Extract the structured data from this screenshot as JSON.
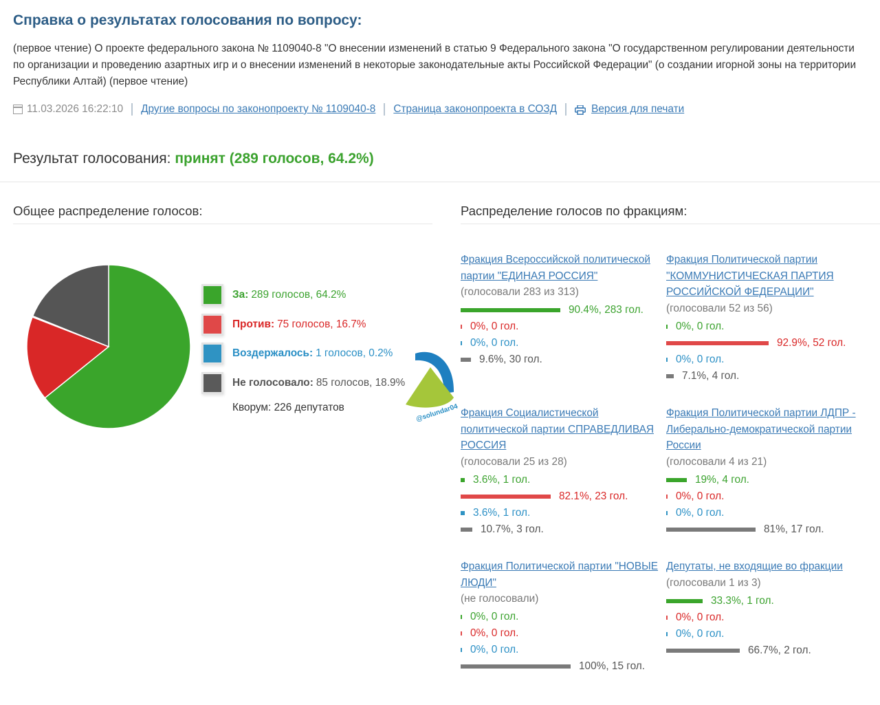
{
  "header": {
    "title": "Справка о результатах голосования по вопросу:",
    "description": "(первое чтение) О проекте федерального закона № 1109040-8 \"О внесении изменений в статью 9 Федерального закона \"О государственном регулировании деятельности по организации и проведению азартных игр и о внесении изменений в некоторые законодательные акты Российской Федерации\" (о создании игорной зоны на территории Республики Алтай) (первое чтение)"
  },
  "meta": {
    "datetime": "11.03.2026 16:22:10",
    "links": {
      "other_questions": "Другие вопросы по законопроекту № 1109040-8",
      "sozd_page": "Страница законопроекта в СОЗД",
      "print_version": "Версия для печати"
    }
  },
  "result": {
    "label": "Результат голосования:",
    "value": "принят (289 голосов, 64.2%)"
  },
  "sections": {
    "overall_title": "Общее распределение голосов:",
    "factions_title": "Распределение голосов по фракциям:"
  },
  "colors": {
    "za": "#3aa52b",
    "protiv": "#d92727",
    "vozderzh": "#2f93c3",
    "ne_golos": "#5a5a5a",
    "link": "#3a7ab5",
    "title": "#2d5d86"
  },
  "legend": [
    {
      "label": "За:",
      "value": "289 голосов, 64.2%",
      "color": "#3aa52b"
    },
    {
      "label": "Против:",
      "value": "75 голосов, 16.7%",
      "color": "#e04848"
    },
    {
      "label": "Воздержалось:",
      "value": "1 голосов, 0.2%",
      "color": "#2f93c3"
    },
    {
      "label": "Не голосовало:",
      "value": "85 голосов, 18.9%",
      "color": "#5a5a5a"
    }
  ],
  "quorum": "Кворум: 226 депутатов",
  "watermark": "@solundar04",
  "chart_data": {
    "type": "pie",
    "categories": [
      "За",
      "Против",
      "Воздержалось",
      "Не голосовало"
    ],
    "values": [
      289,
      75,
      1,
      85
    ],
    "percent": [
      64.2,
      16.7,
      0.2,
      18.9
    ],
    "colors": [
      "#3aa52b",
      "#d92727",
      "#2f93c3",
      "#555555"
    ]
  },
  "factions": [
    {
      "name": "Фракция Всероссийской политической партии \"ЕДИНАЯ РОССИЯ\"",
      "voted": "(голосовали 283 из 313)",
      "bars": [
        {
          "fraction": 0.904,
          "text": "90.4%, 283 гол."
        },
        {
          "fraction": 0.0,
          "text": "0%, 0 гол."
        },
        {
          "fraction": 0.0,
          "text": "0%, 0 гол."
        },
        {
          "fraction": 0.096,
          "text": "9.6%, 30 гол."
        }
      ]
    },
    {
      "name": "Фракция Политической партии \"КОММУНИСТИЧЕСКАЯ ПАРТИЯ РОССИЙСКОЙ ФЕДЕРАЦИИ\"",
      "voted": "(голосовали 52 из 56)",
      "bars": [
        {
          "fraction": 0.0,
          "text": "0%, 0 гол."
        },
        {
          "fraction": 0.929,
          "text": "92.9%, 52 гол."
        },
        {
          "fraction": 0.0,
          "text": "0%, 0 гол."
        },
        {
          "fraction": 0.071,
          "text": "7.1%, 4 гол."
        }
      ]
    },
    {
      "name": "Фракция Социалистической политической партии СПРАВЕДЛИВАЯ РОССИЯ",
      "voted": "(голосовали 25 из 28)",
      "bars": [
        {
          "fraction": 0.036,
          "text": "3.6%, 1 гол."
        },
        {
          "fraction": 0.821,
          "text": "82.1%, 23 гол."
        },
        {
          "fraction": 0.036,
          "text": "3.6%, 1 гол."
        },
        {
          "fraction": 0.107,
          "text": "10.7%, 3 гол."
        }
      ]
    },
    {
      "name": "Фракция Политической партии ЛДПР - Либерально-демократической партии России",
      "voted": "(голосовали 4 из 21)",
      "bars": [
        {
          "fraction": 0.19,
          "text": "19%, 4 гол."
        },
        {
          "fraction": 0.0,
          "text": "0%, 0 гол."
        },
        {
          "fraction": 0.0,
          "text": "0%, 0 гол."
        },
        {
          "fraction": 0.81,
          "text": "81%, 17 гол."
        }
      ]
    },
    {
      "name": "Фракция Политической партии \"НОВЫЕ ЛЮДИ\"",
      "voted": "(не голосовали)",
      "bars": [
        {
          "fraction": 0.0,
          "text": "0%, 0 гол."
        },
        {
          "fraction": 0.0,
          "text": "0%, 0 гол."
        },
        {
          "fraction": 0.0,
          "text": "0%, 0 гол."
        },
        {
          "fraction": 1.0,
          "text": "100%, 15 гол."
        }
      ]
    },
    {
      "name": "Депутаты, не входящие во фракции",
      "voted": "(голосовали 1 из 3)",
      "bars": [
        {
          "fraction": 0.333,
          "text": "33.3%, 1 гол."
        },
        {
          "fraction": 0.0,
          "text": "0%, 0 гол."
        },
        {
          "fraction": 0.0,
          "text": "0%, 0 гол."
        },
        {
          "fraction": 0.667,
          "text": "66.7%, 2 гол."
        }
      ]
    }
  ]
}
